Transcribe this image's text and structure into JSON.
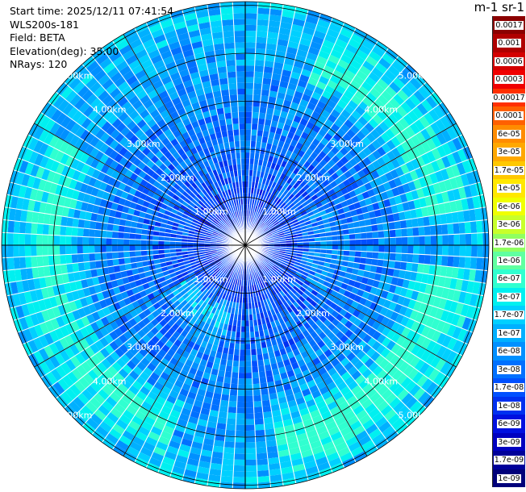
{
  "header": {
    "start_time": "Start time: 2025/12/11 07:41:54",
    "instrument": "WLS200s-181",
    "field": "Field: BETA",
    "elevation": "Elevation(deg): 35.00",
    "nrays": "NRays: 120"
  },
  "colorbar": {
    "unit_label": "m-1 sr-1",
    "ticks": [
      "0.0017",
      "0.001",
      "0.0006",
      "0.0003",
      "0.00017",
      "0.0001",
      "6e-05",
      "3e-05",
      "1.7e-05",
      "1e-05",
      "6e-06",
      "3e-06",
      "1.7e-06",
      "1e-06",
      "6e-07",
      "3e-07",
      "1.7e-07",
      "1e-07",
      "6e-08",
      "3e-08",
      "1.7e-08",
      "1e-08",
      "6e-09",
      "3e-09",
      "1.7e-09",
      "1e-09"
    ],
    "colors": [
      "#8b0000",
      "#b00000",
      "#d40000",
      "#f00000",
      "#ff3000",
      "#ff6000",
      "#ff8c00",
      "#ffa800",
      "#ffc800",
      "#ffe800",
      "#f0ff00",
      "#c8ff2a",
      "#90ff60",
      "#60ffa0",
      "#30ffd0",
      "#00f0f0",
      "#00d0ff",
      "#00b0ff",
      "#0090ff",
      "#0070ff",
      "#0050ff",
      "#0030f0",
      "#0010e0",
      "#0000c0",
      "#00009a",
      "#00007a"
    ]
  },
  "range_rings": {
    "labels": [
      "1.00km",
      "2.00km",
      "3.00km",
      "4.00km",
      "5.00km"
    ]
  }
}
